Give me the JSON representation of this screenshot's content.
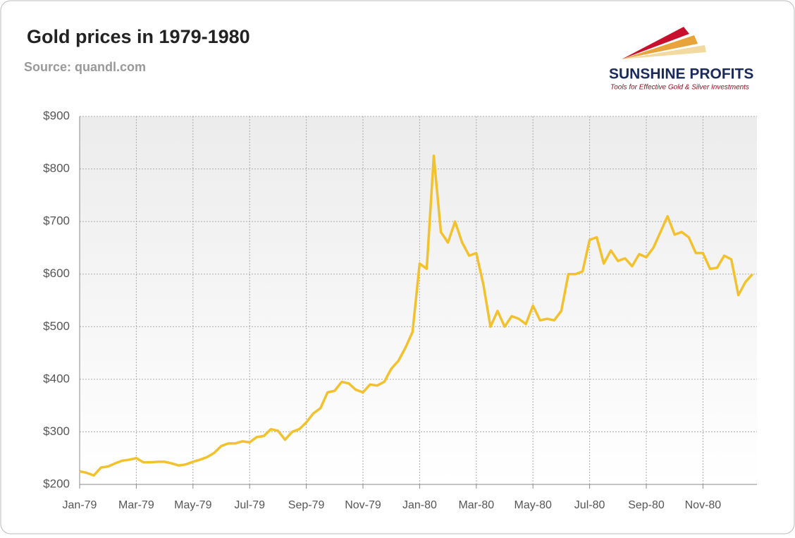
{
  "chart_data": {
    "type": "line",
    "title": "Gold prices in 1979-1980",
    "subtitle": "Source: quandl.com",
    "logo": {
      "name": "SUNSHINE PROFITS",
      "tagline": "Tools for Effective Gold & Silver Investments"
    },
    "categories": [
      "Jan-79",
      null,
      null,
      null,
      null,
      null,
      null,
      null,
      "Mar-79",
      null,
      null,
      null,
      null,
      null,
      null,
      null,
      "May-79",
      null,
      null,
      null,
      null,
      null,
      null,
      null,
      "Jul-79",
      null,
      null,
      null,
      null,
      null,
      null,
      null,
      "Sep-79",
      null,
      null,
      null,
      null,
      null,
      null,
      null,
      "Nov-79",
      null,
      null,
      null,
      null,
      null,
      null,
      null,
      "Jan-80",
      null,
      null,
      null,
      null,
      null,
      null,
      null,
      "Mar-80",
      null,
      null,
      null,
      null,
      null,
      null,
      null,
      "May-80",
      null,
      null,
      null,
      null,
      null,
      null,
      null,
      "Jul-80",
      null,
      null,
      null,
      null,
      null,
      null,
      null,
      "Sep-80",
      null,
      null,
      null,
      null,
      null,
      null,
      null,
      "Nov-80",
      null,
      null,
      null,
      null,
      null,
      null,
      null
    ],
    "values": [
      225,
      222,
      217,
      232,
      234,
      240,
      245,
      247,
      250,
      242,
      242,
      243,
      243,
      240,
      236,
      238,
      243,
      247,
      252,
      260,
      273,
      278,
      278,
      282,
      280,
      290,
      292,
      305,
      302,
      285,
      300,
      305,
      318,
      335,
      345,
      375,
      378,
      395,
      392,
      380,
      375,
      390,
      388,
      395,
      420,
      435,
      460,
      490,
      620,
      610,
      825,
      680,
      660,
      700,
      660,
      635,
      640,
      580,
      500,
      530,
      500,
      520,
      515,
      505,
      540,
      512,
      515,
      512,
      530,
      600,
      600,
      605,
      665,
      670,
      620,
      645,
      625,
      630,
      615,
      638,
      632,
      650,
      680,
      710,
      675,
      680,
      670,
      640,
      640,
      610,
      612,
      635,
      628,
      560,
      585,
      600
    ],
    "color": "#f2c12e",
    "ylim": [
      200,
      900
    ],
    "yticks": [
      {
        "value": 200,
        "label": "$200"
      },
      {
        "value": 300,
        "label": "$300"
      },
      {
        "value": 400,
        "label": "$400"
      },
      {
        "value": 500,
        "label": "$500"
      },
      {
        "value": 600,
        "label": "$600"
      },
      {
        "value": 700,
        "label": "$700"
      },
      {
        "value": 800,
        "label": "$800"
      },
      {
        "value": 900,
        "label": "$900"
      }
    ],
    "grid": true
  }
}
